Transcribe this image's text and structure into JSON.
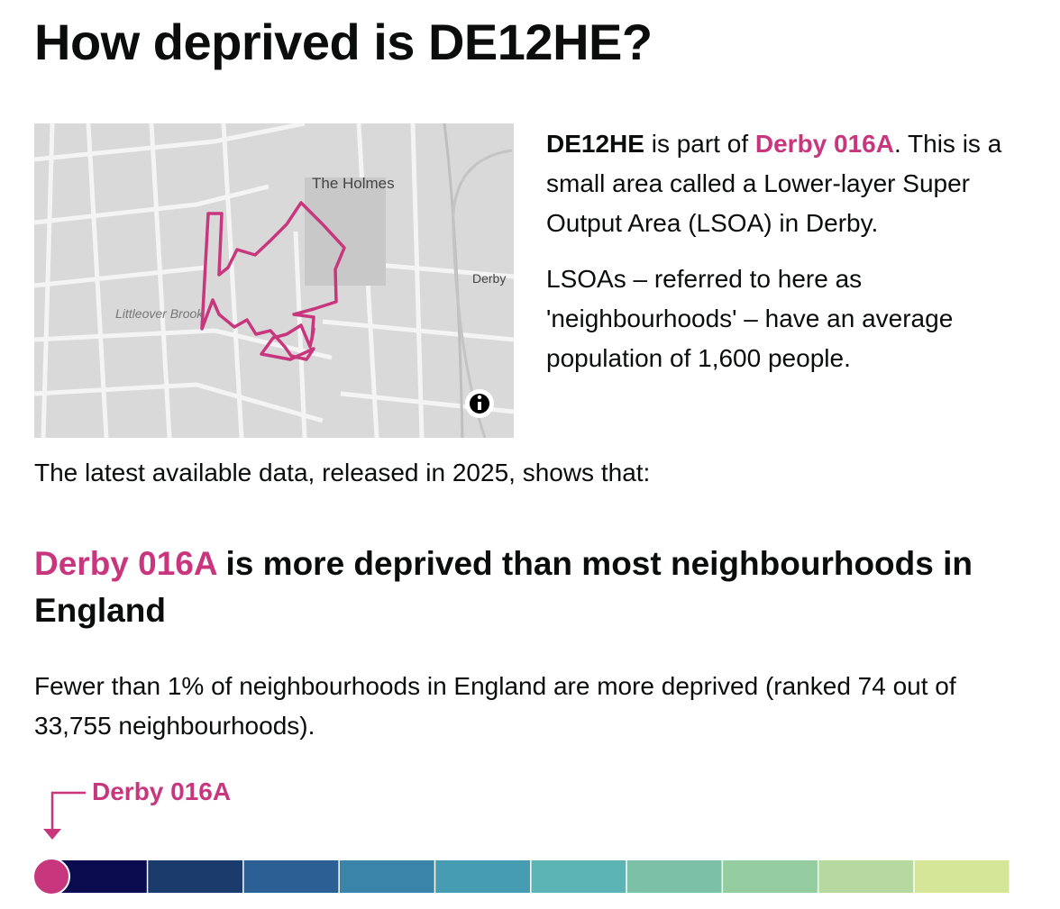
{
  "header": {
    "title": "How deprived is DE12HE?"
  },
  "map": {
    "labels": [
      "The Holmes",
      "Derby",
      "Littleover Brook"
    ]
  },
  "intro": {
    "p1": [
      "DE12HE",
      " is part of ",
      "Derby 016A",
      ". This is a small area called a Lower-layer Super Output Area (LSOA) in Derby."
    ],
    "p2": "LSOAs – referred to here as 'neighbourhoods' – have an average population of 1,600 people."
  },
  "lead": "The latest available data, released in 2025, shows that:",
  "result": {
    "heading": [
      "Derby 016A",
      " is more deprived than most neighbourhoods in England"
    ],
    "text": "Fewer than 1% of neighbourhoods in England are more deprived (ranked 74 out of 33,755 neighbourhoods).",
    "marker_label": "Derby 016A"
  },
  "scale": {
    "colors": [
      "#0b0c50",
      "#1b3b6c",
      "#2c5f94",
      "#3a84a9",
      "#469cb3",
      "#5cb5b4",
      "#7cc1a7",
      "#96cda0",
      "#b5d99e",
      "#d6e698"
    ]
  }
}
